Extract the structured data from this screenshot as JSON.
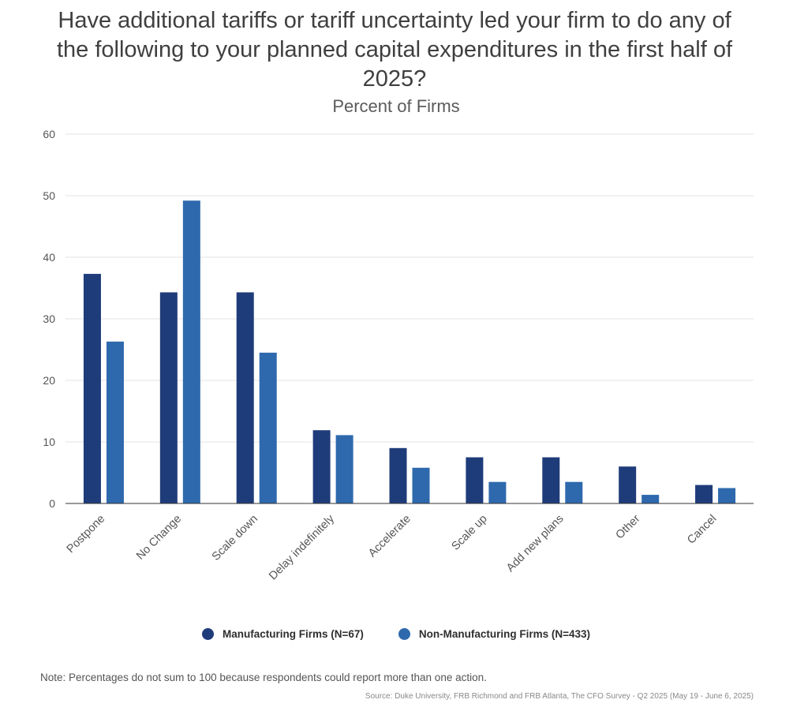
{
  "chart_data": {
    "type": "bar",
    "title": "Have additional tariffs or tariff uncertainty led your firm to do any of the following to your planned capital expenditures in the first half of 2025?",
    "subtitle": "Percent of Firms",
    "categories": [
      "Postpone",
      "No Change",
      "Scale down",
      "Delay indefinitely",
      "Accelerate",
      "Scale up",
      "Add new plans",
      "Other",
      "Cancel"
    ],
    "series": [
      {
        "name": "Manufacturing Firms (N=67)",
        "color": "#1f3c7a",
        "values": [
          37.3,
          34.3,
          34.3,
          11.9,
          9.0,
          7.5,
          7.5,
          6.0,
          3.0
        ]
      },
      {
        "name": "Non-Manufacturing Firms (N=433)",
        "color": "#2e69ad",
        "values": [
          26.3,
          49.2,
          24.5,
          11.1,
          5.8,
          3.5,
          3.5,
          1.4,
          2.5
        ]
      }
    ],
    "ylim": [
      0,
      60
    ],
    "yticks": [
      0,
      10,
      20,
      30,
      40,
      50,
      60
    ],
    "grid": true,
    "legend_position": "bottom"
  },
  "note": "Note: Percentages do not sum to 100 because respondents could report more than one action.",
  "source": "Source: Duke University, FRB Richmond and FRB Atlanta, The CFO Survey - Q2 2025 (May 19 - June 6, 2025)"
}
